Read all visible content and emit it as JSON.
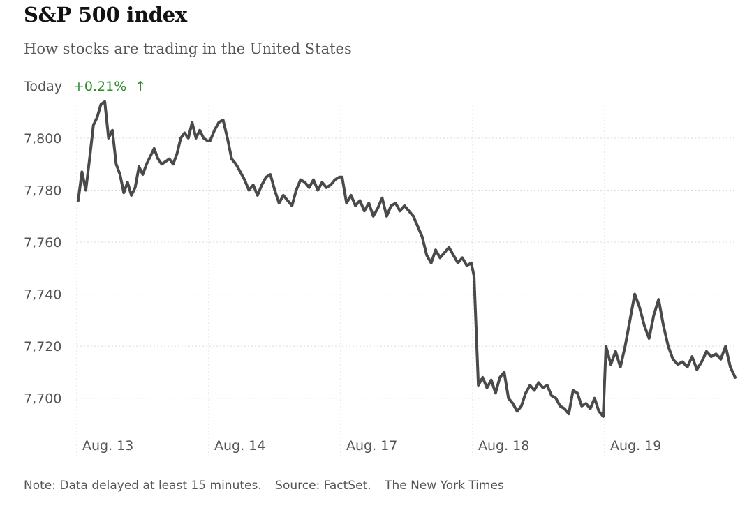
{
  "header": {
    "title": "S&P 500 index",
    "subtitle": "How stocks are trading in the United States",
    "today_label": "Today",
    "today_change": "+0.21%",
    "today_arrow": "↑"
  },
  "footer": {
    "note": "Note: Data delayed at least 15 minutes.",
    "source": "Source: FactSet.",
    "credit": "The New York Times"
  },
  "colors": {
    "line": "#4a4a4a",
    "positive": "#2e8b2e",
    "grid": "#d9d9d9",
    "text_muted": "#555555"
  },
  "chart_data": {
    "type": "line",
    "title": "S&P 500 index",
    "xlabel": "",
    "ylabel": "",
    "ylim": [
      7690,
      7815
    ],
    "yticks": [
      7700,
      7720,
      7740,
      7760,
      7780,
      7800
    ],
    "ytick_labels": [
      "7,700",
      "7,720",
      "7,740",
      "7,760",
      "7,780",
      "7,800"
    ],
    "grid": true,
    "legend": "none",
    "days": [
      "Aug. 13",
      "Aug. 14",
      "Aug. 17",
      "Aug. 18",
      "Aug. 19"
    ],
    "series": [
      {
        "name": "",
        "days": [
          [
            7776,
            7787,
            7780,
            7792,
            7805,
            7808,
            7813,
            7814,
            7800,
            7803,
            7790,
            7786,
            7779,
            7783,
            7778,
            7781,
            7789,
            7786,
            7790,
            7793,
            7796,
            7792,
            7790,
            7791,
            7792,
            7790,
            7794,
            7800,
            7802,
            7800,
            7806,
            7800,
            7803,
            7800,
            7799
          ],
          [
            7799,
            7803,
            7806,
            7807,
            7800,
            7792,
            7790,
            7787,
            7784,
            7780,
            7782,
            7778,
            7782,
            7785,
            7786,
            7780,
            7775,
            7778,
            7776,
            7774,
            7780,
            7784,
            7783,
            7781,
            7784,
            7780,
            7783,
            7781,
            7782,
            7784,
            7785
          ],
          [
            7785,
            7775,
            7778,
            7774,
            7776,
            7772,
            7775,
            7770,
            7773,
            7777,
            7770,
            7774,
            7775,
            7772,
            7774,
            7772,
            7770,
            7766,
            7762,
            7755,
            7752,
            7757,
            7754,
            7756,
            7758,
            7755,
            7752,
            7754,
            7751,
            7752
          ],
          [
            7747,
            7705,
            7708,
            7704,
            7707,
            7702,
            7708,
            7710,
            7700,
            7698,
            7695,
            7697,
            7702,
            7705,
            7703,
            7706,
            7704,
            7705,
            7701,
            7700,
            7697,
            7696,
            7694,
            7703,
            7702,
            7697,
            7698,
            7696,
            7700,
            7695,
            7693
          ],
          [
            7720,
            7713,
            7718,
            7712,
            7720,
            7730,
            7740,
            7735,
            7728,
            7723,
            7732,
            7738,
            7728,
            7720,
            7715,
            7713,
            7714,
            7712,
            7716,
            7711,
            7714,
            7718,
            7716,
            7717,
            7715,
            7720,
            7712,
            7708
          ]
        ]
      }
    ]
  }
}
